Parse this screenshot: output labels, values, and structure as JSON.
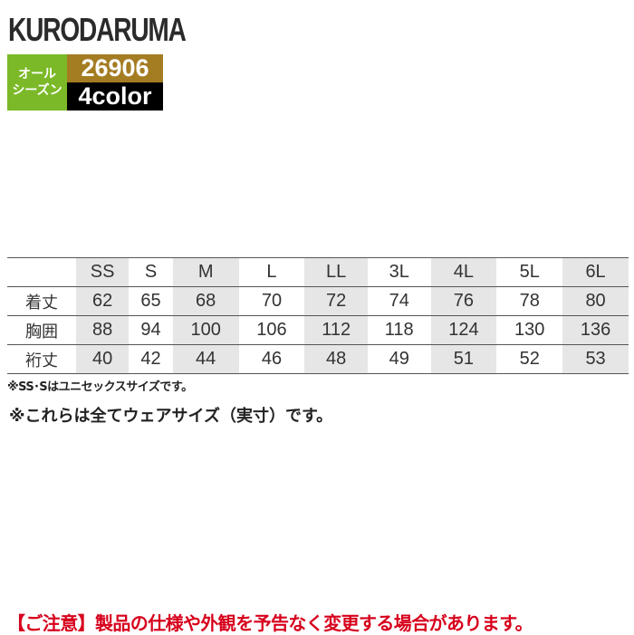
{
  "brand": "KURODARUMA",
  "badge": {
    "season_line1": "オール",
    "season_line2": "シーズン",
    "code": "26906",
    "colors": "4color",
    "colors_hex": {
      "season": "#7bb928",
      "code": "#a47c22",
      "colors": "#000000"
    }
  },
  "table": {
    "sizes": [
      "SS",
      "S",
      "M",
      "L",
      "LL",
      "3L",
      "4L",
      "5L",
      "6L"
    ],
    "rows": [
      {
        "label": "着丈",
        "values": [
          "62",
          "65",
          "68",
          "70",
          "72",
          "74",
          "76",
          "78",
          "80"
        ]
      },
      {
        "label": "胸囲",
        "values": [
          "88",
          "94",
          "100",
          "106",
          "112",
          "118",
          "124",
          "130",
          "136"
        ]
      },
      {
        "label": "裄丈",
        "values": [
          "40",
          "42",
          "44",
          "46",
          "48",
          "49",
          "51",
          "52",
          "53"
        ]
      }
    ]
  },
  "notes": {
    "unisex": "※SS･Sはユニセックスサイズです。",
    "actual": "※これらは全てウェアサイズ（実寸）です。"
  },
  "warning": "【ご注意】製品の仕様や外観を予告なく変更する場合があります。",
  "accent_colors": {
    "warning": "#d7001c",
    "shaded_column": "#e6e6e6"
  }
}
